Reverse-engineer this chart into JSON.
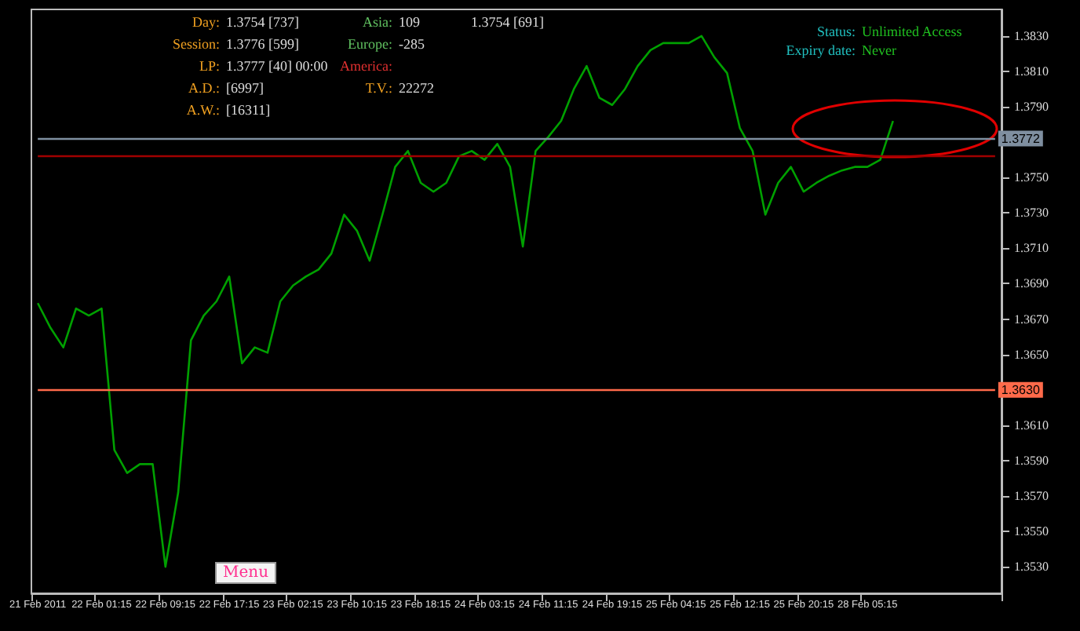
{
  "chart_data": {
    "type": "line",
    "categories": [
      "21 Feb 2011",
      null,
      null,
      null,
      null,
      "22 Feb 01:15",
      null,
      null,
      null,
      null,
      "22 Feb 09:15",
      null,
      null,
      null,
      null,
      "22 Feb 17:15",
      null,
      null,
      null,
      null,
      "23 Feb 02:15",
      null,
      null,
      null,
      null,
      "23 Feb 10:15",
      null,
      null,
      null,
      null,
      "23 Feb 18:15",
      null,
      null,
      null,
      null,
      "24 Feb 03:15",
      null,
      null,
      null,
      null,
      "24 Feb 11:15",
      null,
      null,
      null,
      null,
      "24 Feb 19:15",
      null,
      null,
      null,
      null,
      "25 Feb 04:15",
      null,
      null,
      null,
      null,
      "25 Feb 12:15",
      null,
      null,
      null,
      null,
      "25 Feb 20:15",
      null,
      null,
      null,
      null,
      "28 Feb 05:15",
      null,
      null,
      null,
      null,
      null,
      null,
      null,
      null,
      null,
      null
    ],
    "series": [
      {
        "color": "#00a000",
        "values": [
          1.3679,
          1.3665,
          1.3654,
          1.3676,
          1.3672,
          1.3676,
          1.3596,
          1.3583,
          1.3588,
          1.3588,
          1.353,
          1.3572,
          1.3658,
          1.3672,
          1.368,
          1.3694,
          1.3645,
          1.3654,
          1.3651,
          1.368,
          1.3689,
          1.3694,
          1.3698,
          1.3707,
          1.3729,
          1.372,
          1.3703,
          1.3729,
          1.3756,
          1.3765,
          1.3747,
          1.3742,
          1.3747,
          1.3762,
          1.3765,
          1.376,
          1.3769,
          1.3756,
          1.3711,
          1.3765,
          1.3773,
          1.3782,
          1.38,
          1.3813,
          1.3795,
          1.3791,
          1.38,
          1.3813,
          1.3822,
          1.3826,
          1.3826,
          1.3826,
          1.383,
          1.3818,
          1.3809,
          1.3778,
          1.3765,
          1.3729,
          1.3747,
          1.3756,
          1.3742,
          1.3747,
          1.3751,
          1.3754,
          1.3756,
          1.3756,
          1.376,
          1.3782,
          null,
          null,
          null,
          null,
          null,
          null,
          null,
          null
        ]
      }
    ],
    "ylim": [
      1.3515,
      1.3845
    ],
    "yticks": [
      {
        "value": 1.353,
        "label": "1.3530"
      },
      {
        "value": 1.355,
        "label": "1.3550"
      },
      {
        "value": 1.357,
        "label": "1.3570"
      },
      {
        "value": 1.359,
        "label": "1.3590"
      },
      {
        "value": 1.361,
        "label": "1.3610"
      },
      {
        "value": 1.363,
        "label": null
      },
      {
        "value": 1.365,
        "label": "1.3650"
      },
      {
        "value": 1.367,
        "label": "1.3670"
      },
      {
        "value": 1.369,
        "label": "1.3690"
      },
      {
        "value": 1.371,
        "label": "1.3710"
      },
      {
        "value": 1.373,
        "label": "1.3730"
      },
      {
        "value": 1.375,
        "label": "1.3750"
      },
      {
        "value": 1.377,
        "label": null
      },
      {
        "value": 1.379,
        "label": "1.3790"
      },
      {
        "value": 1.381,
        "label": "1.3810"
      },
      {
        "value": 1.383,
        "label": "1.3830"
      }
    ],
    "ref_lines": [
      {
        "axis": "y",
        "value": 1.363,
        "label": "1.3630",
        "color": "#ff6a4a"
      },
      {
        "axis": "y",
        "value": 1.3772,
        "label": "1.3772",
        "color": "#7f8fa0"
      },
      {
        "axis": "y",
        "value": 1.3762,
        "color": "#a00000"
      }
    ],
    "annotations": [
      "Day: 1.3754 [737]",
      "Session: 1.3776 [599]",
      "LP: 1.3777 [40] 00:00",
      "A.D.: [6997]",
      "A.W.: [16311]",
      "Asia: 109",
      "Europe: -285",
      "America:",
      "T.V.: 22272",
      "1.3754 [691]",
      "Status: Unlimited Access",
      "Expiry date: Never",
      "Menu"
    ],
    "grid": false,
    "marker": "none",
    "line_style": "solid"
  }
}
